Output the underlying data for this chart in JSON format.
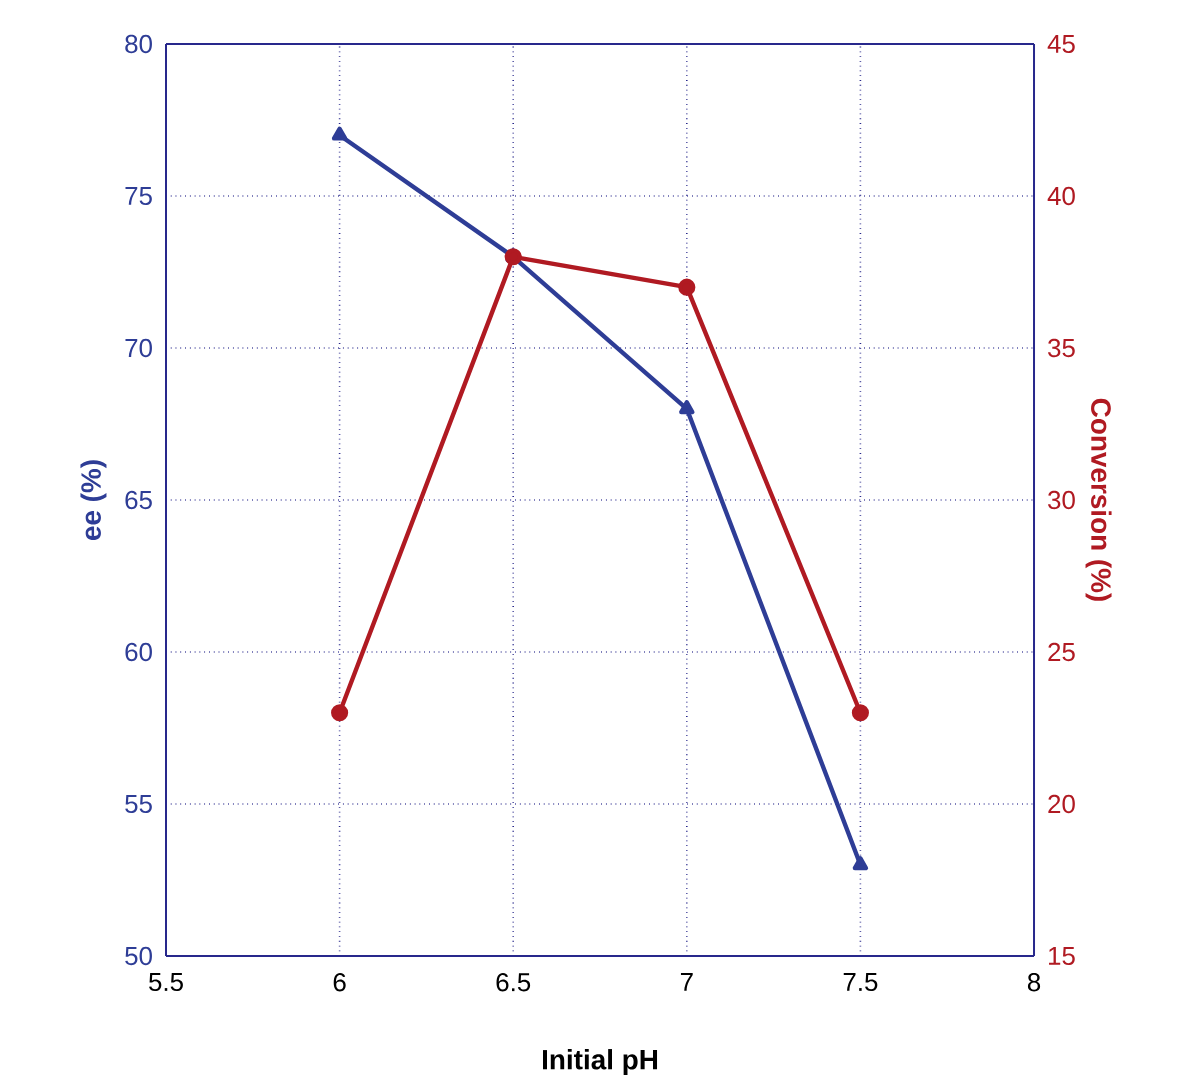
{
  "chart_data": {
    "type": "line",
    "xlabel": "Initial pH",
    "ylabel": "ee (%)",
    "y2label": "Conversion (%)",
    "x": [
      6,
      6.5,
      7,
      7.5
    ],
    "series": [
      {
        "color": "#2e3d96",
        "marker": "triangle",
        "values": [
          77,
          73,
          68,
          53
        ]
      },
      {
        "color": "#b01a22",
        "marker": "circle",
        "axis": "y2",
        "values": [
          23,
          38,
          37,
          23
        ]
      }
    ],
    "xlim": [
      5.5,
      8
    ],
    "xticks": [
      5.5,
      6,
      6.5,
      7,
      7.5,
      8
    ],
    "ylim": [
      50,
      80
    ],
    "yticks": [
      50,
      55,
      60,
      65,
      70,
      75,
      80
    ],
    "y2lim": [
      15,
      45
    ],
    "y2ticks": [
      15,
      20,
      25,
      30,
      35,
      40,
      45
    ],
    "grid": true,
    "line_style": "solid"
  }
}
